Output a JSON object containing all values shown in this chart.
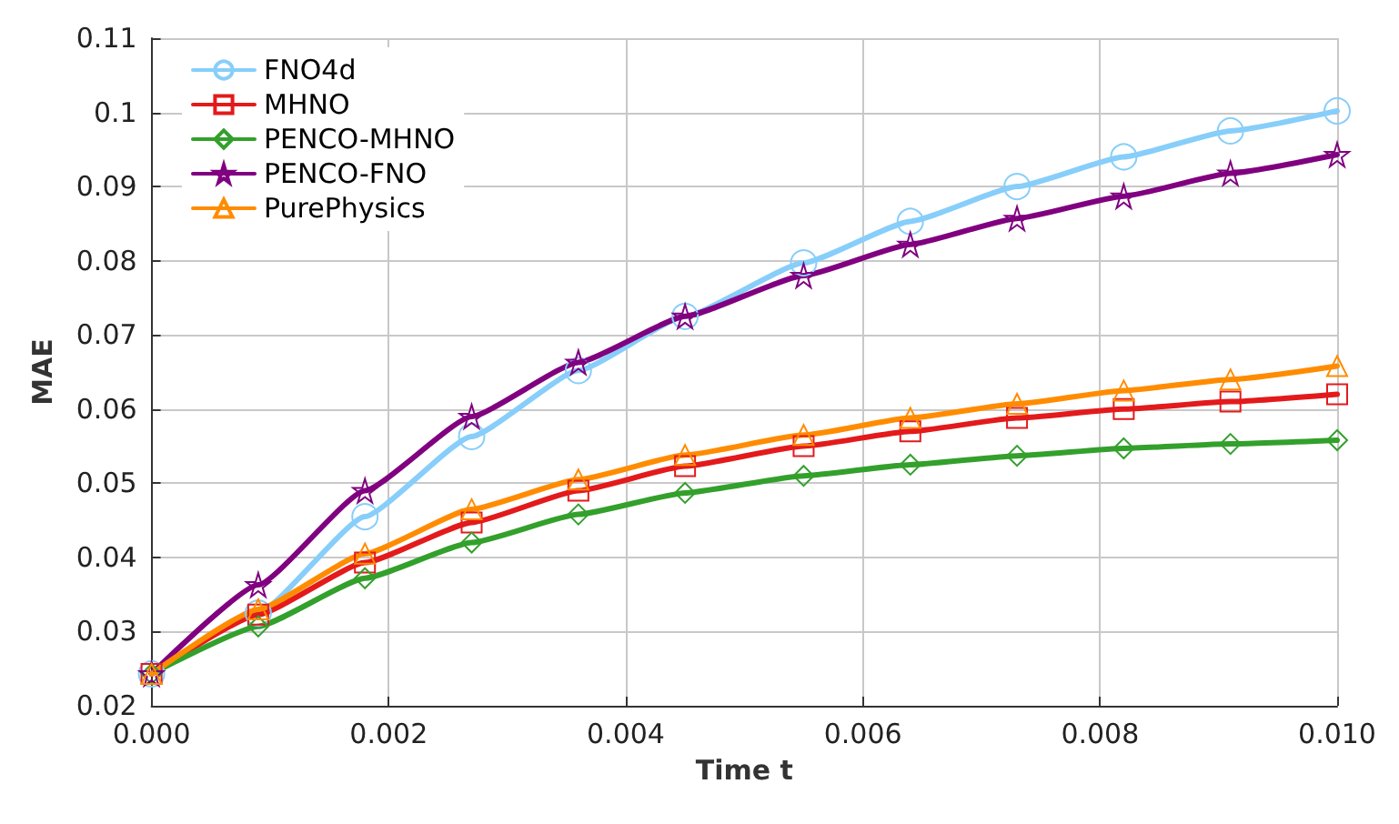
{
  "chart_data": {
    "type": "line",
    "xlabel": "Time t",
    "ylabel": "MAE",
    "x": [
      0,
      0.0009,
      0.0018,
      0.0027,
      0.0036,
      0.0045,
      0.0055,
      0.0064,
      0.0073,
      0.0082,
      0.0091,
      0.01
    ],
    "series": [
      {
        "name": "FNO4d",
        "color": "#87cefa",
        "marker": "circle",
        "values": [
          0.0243,
          0.0325,
          0.0455,
          0.0563,
          0.0652,
          0.0725,
          0.0797,
          0.0853,
          0.09,
          0.094,
          0.0975,
          0.1002
        ]
      },
      {
        "name": "MHNO",
        "color": "#e31a1c",
        "marker": "square",
        "values": [
          0.0243,
          0.0323,
          0.0393,
          0.0447,
          0.049,
          0.0523,
          0.055,
          0.057,
          0.0588,
          0.06,
          0.061,
          0.062
        ]
      },
      {
        "name": "PENCO-MHNO",
        "color": "#33a02c",
        "marker": "diamond",
        "values": [
          0.0243,
          0.0307,
          0.0372,
          0.042,
          0.0458,
          0.0487,
          0.051,
          0.0525,
          0.0537,
          0.0547,
          0.0553,
          0.0558
        ]
      },
      {
        "name": "PENCO-FNO",
        "color": "#800080",
        "marker": "star",
        "values": [
          0.0243,
          0.0363,
          0.049,
          0.059,
          0.0663,
          0.0725,
          0.078,
          0.0822,
          0.0857,
          0.0887,
          0.0918,
          0.0943
        ]
      },
      {
        "name": "PurePhysics",
        "color": "#ff8c00",
        "marker": "triangle",
        "values": [
          0.0243,
          0.033,
          0.0405,
          0.0465,
          0.0505,
          0.0538,
          0.0565,
          0.0588,
          0.0607,
          0.0625,
          0.064,
          0.0658
        ]
      }
    ],
    "xlim": [
      0,
      0.01
    ],
    "xticks": [
      {
        "value": 0,
        "label": "0.000"
      },
      {
        "value": 0.002,
        "label": "0.002"
      },
      {
        "value": 0.004,
        "label": "0.004"
      },
      {
        "value": 0.006,
        "label": "0.006"
      },
      {
        "value": 0.008,
        "label": "0.008"
      },
      {
        "value": 0.01,
        "label": "0.010"
      }
    ],
    "ylim": [
      0.02,
      0.11
    ],
    "yticks": [
      0.02,
      0.03,
      0.04,
      0.05,
      0.06,
      0.07,
      0.08,
      0.09,
      0.1,
      0.11
    ],
    "grid": true,
    "legend": "top left",
    "line_style": "solid"
  }
}
